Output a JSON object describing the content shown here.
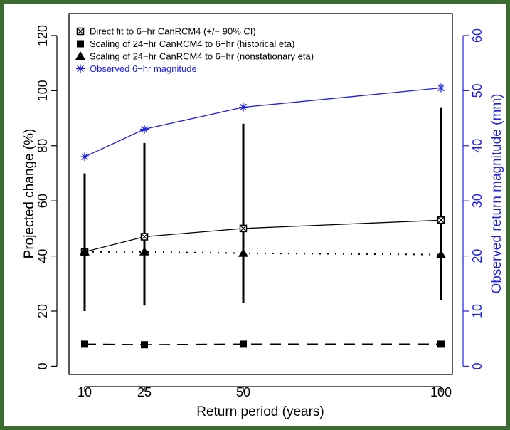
{
  "colors": {
    "frame": "#3d6b34",
    "primary": "#000000",
    "observed": "#1f1fe6"
  },
  "chart_data": {
    "type": "line",
    "x_axis": {
      "label": "Return period (years)",
      "ticks": [
        10,
        25,
        50,
        100
      ],
      "tick_labels": [
        "10",
        "25",
        "50",
        "100"
      ],
      "range": [
        10,
        100
      ]
    },
    "y_axis_left": {
      "label": "Projected change (%)",
      "ticks": [
        0,
        20,
        40,
        60,
        80,
        100,
        120
      ],
      "tick_labels": [
        "0",
        "20",
        "40",
        "60",
        "80",
        "100",
        "120"
      ],
      "range": [
        -3,
        128
      ]
    },
    "y_axis_right": {
      "label": "Observed return magnitude (mm)",
      "ticks": [
        0,
        10,
        20,
        30,
        40,
        50,
        60
      ],
      "tick_labels": [
        "0",
        "10",
        "20",
        "30",
        "40",
        "50",
        "60"
      ],
      "range": [
        -1.5,
        64
      ],
      "color": "#1f1fe6"
    },
    "legend_position": "top-left",
    "series": [
      {
        "name": "Direct fit to 6−hr CanRCM4 (+/− 90% CI)",
        "axis": "left",
        "marker": "boxed-x",
        "line": "solid",
        "color": "#000000",
        "x": [
          10,
          25,
          50,
          100
        ],
        "y": [
          41.5,
          47,
          50,
          53
        ],
        "ci_low": [
          20,
          22,
          23,
          24
        ],
        "ci_high": [
          70,
          81,
          88,
          94
        ]
      },
      {
        "name": "Scaling of 24−hr CanRCM4 to 6−hr (historical eta)",
        "axis": "left",
        "marker": "square",
        "line": "dashed",
        "color": "#000000",
        "x": [
          10,
          25,
          50,
          100
        ],
        "y": [
          8,
          7.8,
          8,
          8
        ]
      },
      {
        "name": "Scaling of 24−hr CanRCM4 to 6−hr (nonstationary eta)",
        "axis": "left",
        "marker": "triangle",
        "line": "dotted",
        "color": "#000000",
        "x": [
          10,
          25,
          50,
          100
        ],
        "y": [
          41.5,
          41.5,
          41,
          40.5
        ]
      },
      {
        "name": "Observed 6−hr magnitude",
        "axis": "right",
        "marker": "asterisk",
        "line": "solid",
        "color": "#1f1fe6",
        "x": [
          10,
          25,
          50,
          100
        ],
        "y": [
          38,
          43,
          47,
          50.5
        ]
      }
    ]
  }
}
